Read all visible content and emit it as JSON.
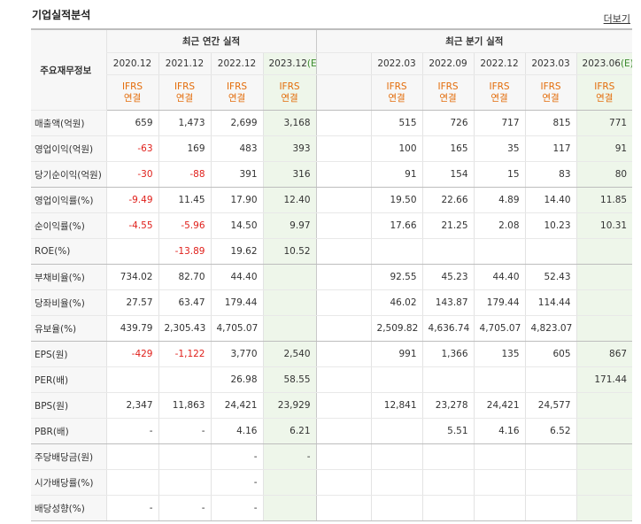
{
  "title": "기업실적분석",
  "more_label": "더보기",
  "header": {
    "row_label": "주요재무정보",
    "annual_group": "최근 연간 실적",
    "quarter_group": "최근 분기 실적",
    "annual_periods": [
      "2020.12",
      "2021.12",
      "2022.12",
      "2023.12"
    ],
    "annual_est_mark": "(E)",
    "quarter_periods": [
      "2022.03",
      "2022.09",
      "2022.12",
      "2023.03",
      "2023.06"
    ],
    "quarter_est_mark": "(E)",
    "basis_top": "IFRS",
    "basis_bottom": "연결"
  },
  "rows": [
    {
      "label": "매출액(억원)",
      "annual": [
        "659",
        "1,473",
        "2,699",
        "3,168"
      ],
      "quarter": [
        "515",
        "726",
        "717",
        "815",
        "771"
      ]
    },
    {
      "label": "영업이익(억원)",
      "annual": [
        "-63",
        "169",
        "483",
        "393"
      ],
      "quarter": [
        "100",
        "165",
        "35",
        "117",
        "91"
      ]
    },
    {
      "label": "당기순이익(억원)",
      "annual": [
        "-30",
        "-88",
        "391",
        "316"
      ],
      "quarter": [
        "91",
        "154",
        "15",
        "83",
        "80"
      ]
    },
    {
      "label": "영업이익률(%)",
      "annual": [
        "-9.49",
        "11.45",
        "17.90",
        "12.40"
      ],
      "quarter": [
        "19.50",
        "22.66",
        "4.89",
        "14.40",
        "11.85"
      ]
    },
    {
      "label": "순이익률(%)",
      "annual": [
        "-4.55",
        "-5.96",
        "14.50",
        "9.97"
      ],
      "quarter": [
        "17.66",
        "21.25",
        "2.08",
        "10.23",
        "10.31"
      ]
    },
    {
      "label": "ROE(%)",
      "annual": [
        "",
        "-13.89",
        "19.62",
        "10.52"
      ],
      "quarter": [
        "",
        "",
        "",
        "",
        ""
      ]
    },
    {
      "label": "부채비율(%)",
      "annual": [
        "734.02",
        "82.70",
        "44.40",
        ""
      ],
      "quarter": [
        "92.55",
        "45.23",
        "44.40",
        "52.43",
        ""
      ]
    },
    {
      "label": "당좌비율(%)",
      "annual": [
        "27.57",
        "63.47",
        "179.44",
        ""
      ],
      "quarter": [
        "46.02",
        "143.87",
        "179.44",
        "114.44",
        ""
      ]
    },
    {
      "label": "유보율(%)",
      "annual": [
        "439.79",
        "2,305.43",
        "4,705.07",
        ""
      ],
      "quarter": [
        "2,509.82",
        "4,636.74",
        "4,705.07",
        "4,823.07",
        ""
      ]
    },
    {
      "label": "EPS(원)",
      "annual": [
        "-429",
        "-1,122",
        "3,770",
        "2,540"
      ],
      "quarter": [
        "991",
        "1,366",
        "135",
        "605",
        "867"
      ]
    },
    {
      "label": "PER(배)",
      "annual": [
        "",
        "",
        "26.98",
        "58.55"
      ],
      "quarter": [
        "",
        "",
        "",
        "",
        "171.44"
      ]
    },
    {
      "label": "BPS(원)",
      "annual": [
        "2,347",
        "11,863",
        "24,421",
        "23,929"
      ],
      "quarter": [
        "12,841",
        "23,278",
        "24,421",
        "24,577",
        ""
      ]
    },
    {
      "label": "PBR(배)",
      "annual": [
        "-",
        "-",
        "4.16",
        "6.21"
      ],
      "quarter": [
        "",
        "5.51",
        "4.16",
        "6.52",
        ""
      ]
    },
    {
      "label": "주당배당금(원)",
      "annual": [
        "",
        "",
        "-",
        "-"
      ],
      "quarter": [
        "",
        "",
        "",
        "",
        ""
      ]
    },
    {
      "label": "시가배당률(%)",
      "annual": [
        "",
        "",
        "-",
        ""
      ],
      "quarter": [
        "",
        "",
        "",
        "",
        ""
      ]
    },
    {
      "label": "배당성향(%)",
      "annual": [
        "-",
        "-",
        "-",
        ""
      ],
      "quarter": [
        "",
        "",
        "",
        "",
        ""
      ]
    }
  ],
  "colors": {
    "negative": "#e0201b",
    "basis": "#e36c0a",
    "estimate_bg": "#eef6ea",
    "estimate_mark": "#3a8a2c"
  }
}
